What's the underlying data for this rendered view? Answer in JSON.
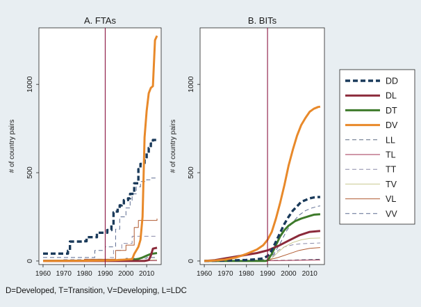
{
  "footnote": "D=Developed, T=Transition, V=Developing, L=LDC",
  "colors": {
    "background": "#e8eef2",
    "plot_bg": "#ffffff",
    "vline": "#8a1540",
    "DD": "#1a3a5a",
    "DL": "#8b2a3a",
    "DT": "#3d7a2a",
    "DV": "#e8892a",
    "LL": "#5a6a80",
    "TL": "#a03050",
    "TT": "#8a8aa8",
    "TV": "#c8c890",
    "VL": "#b05a30",
    "VV": "#5a6a90"
  },
  "legend": [
    {
      "key": "DD",
      "label": "DD"
    },
    {
      "key": "DL",
      "label": "DL"
    },
    {
      "key": "DT",
      "label": "DT"
    },
    {
      "key": "DV",
      "label": "DV"
    },
    {
      "key": "LL",
      "label": "LL"
    },
    {
      "key": "TL",
      "label": "TL"
    },
    {
      "key": "TT",
      "label": "TT"
    },
    {
      "key": "TV",
      "label": "TV"
    },
    {
      "key": "VL",
      "label": "VL"
    },
    {
      "key": "VV",
      "label": "VV"
    }
  ],
  "chart_data": [
    {
      "type": "line",
      "title": "A. FTAs",
      "xlabel": "",
      "ylabel": "# of country pairs",
      "xlim": [
        1958,
        2017
      ],
      "ylim": [
        -20,
        1320
      ],
      "xticks": [
        1960,
        1970,
        1980,
        1990,
        2000,
        2010
      ],
      "yticks": [
        0,
        500,
        1000
      ],
      "vline": 1990,
      "series": [
        {
          "name": "DD",
          "step": true,
          "points": [
            [
              1960,
              42
            ],
            [
              1962,
              42
            ],
            [
              1964,
              42
            ],
            [
              1966,
              42
            ],
            [
              1968,
              42
            ],
            [
              1970,
              42
            ],
            [
              1972,
              58
            ],
            [
              1973,
              110
            ],
            [
              1975,
              110
            ],
            [
              1977,
              110
            ],
            [
              1979,
              112
            ],
            [
              1981,
              135
            ],
            [
              1983,
              135
            ],
            [
              1985,
              135
            ],
            [
              1986,
              160
            ],
            [
              1988,
              160
            ],
            [
              1990,
              160
            ],
            [
              1991,
              175
            ],
            [
              1993,
              205
            ],
            [
              1994,
              275
            ],
            [
              1995,
              280
            ],
            [
              1996,
              300
            ],
            [
              1997,
              315
            ],
            [
              1998,
              320
            ],
            [
              1999,
              345
            ],
            [
              2001,
              355
            ],
            [
              2002,
              380
            ],
            [
              2004,
              440
            ],
            [
              2006,
              520
            ],
            [
              2007,
              550
            ],
            [
              2008,
              550
            ],
            [
              2009,
              575
            ],
            [
              2010,
              610
            ],
            [
              2011,
              640
            ],
            [
              2012,
              665
            ],
            [
              2013,
              685
            ],
            [
              2015,
              688
            ]
          ]
        },
        {
          "name": "DL",
          "step": false,
          "points": [
            [
              1960,
              0
            ],
            [
              2009,
              0
            ],
            [
              2011,
              5
            ],
            [
              2012,
              30
            ],
            [
              2013,
              70
            ],
            [
              2015,
              75
            ]
          ]
        },
        {
          "name": "DT",
          "step": false,
          "points": [
            [
              1960,
              0
            ],
            [
              1994,
              3
            ],
            [
              2000,
              6
            ],
            [
              2004,
              8
            ],
            [
              2006,
              12
            ],
            [
              2008,
              20
            ],
            [
              2010,
              30
            ],
            [
              2012,
              40
            ],
            [
              2015,
              45
            ]
          ]
        },
        {
          "name": "DV",
          "step": false,
          "points": [
            [
              1960,
              0
            ],
            [
              1985,
              2
            ],
            [
              1990,
              3
            ],
            [
              1995,
              5
            ],
            [
              2000,
              8
            ],
            [
              2003,
              10
            ],
            [
              2004,
              40
            ],
            [
              2005,
              60
            ],
            [
              2006,
              80
            ],
            [
              2007,
              120
            ],
            [
              2008,
              250
            ],
            [
              2009,
              700
            ],
            [
              2010,
              850
            ],
            [
              2011,
              950
            ],
            [
              2012,
              980
            ],
            [
              2013,
              990
            ],
            [
              2014,
              1250
            ],
            [
              2015,
              1275
            ]
          ]
        },
        {
          "name": "LL",
          "step": true,
          "points": [
            [
              1960,
              0
            ],
            [
              1970,
              5
            ],
            [
              1985,
              5
            ],
            [
              1993,
              10
            ],
            [
              2000,
              15
            ],
            [
              2010,
              20
            ],
            [
              2015,
              22
            ]
          ]
        },
        {
          "name": "TL",
          "step": false,
          "points": [
            [
              1960,
              0
            ],
            [
              2015,
              2
            ]
          ]
        },
        {
          "name": "TT",
          "step": true,
          "points": [
            [
              1960,
              5
            ],
            [
              1970,
              8
            ],
            [
              1980,
              10
            ],
            [
              1992,
              20
            ],
            [
              1994,
              60
            ],
            [
              1998,
              100
            ],
            [
              2003,
              140
            ],
            [
              2015,
              140
            ]
          ]
        },
        {
          "name": "TV",
          "step": false,
          "points": [
            [
              1960,
              0
            ],
            [
              1990,
              2
            ],
            [
              2000,
              3
            ],
            [
              2008,
              5
            ],
            [
              2015,
              8
            ]
          ]
        },
        {
          "name": "VL",
          "step": true,
          "points": [
            [
              1960,
              5
            ],
            [
              1970,
              5
            ],
            [
              1980,
              10
            ],
            [
              1990,
              10
            ],
            [
              1995,
              60
            ],
            [
              2000,
              90
            ],
            [
              2004,
              190
            ],
            [
              2006,
              230
            ],
            [
              2015,
              240
            ]
          ]
        },
        {
          "name": "VV",
          "step": true,
          "points": [
            [
              1960,
              20
            ],
            [
              1965,
              20
            ],
            [
              1975,
              20
            ],
            [
              1985,
              60
            ],
            [
              1990,
              80
            ],
            [
              1995,
              180
            ],
            [
              1997,
              250
            ],
            [
              2000,
              300
            ],
            [
              2002,
              340
            ],
            [
              2003,
              380
            ],
            [
              2005,
              420
            ],
            [
              2007,
              450
            ],
            [
              2010,
              460
            ],
            [
              2012,
              470
            ],
            [
              2015,
              475
            ]
          ]
        }
      ]
    },
    {
      "type": "line",
      "title": "B. BITs",
      "xlabel": "",
      "ylabel": "# of country pairs",
      "xlim": [
        1958,
        2017
      ],
      "ylim": [
        -20,
        1320
      ],
      "xticks": [
        1960,
        1970,
        1980,
        1990,
        2000,
        2010
      ],
      "yticks": [
        0,
        500,
        1000
      ],
      "vline": 1990,
      "series": [
        {
          "name": "DD",
          "step": false,
          "points": [
            [
              1960,
              0
            ],
            [
              1975,
              4
            ],
            [
              1980,
              6
            ],
            [
              1985,
              10
            ],
            [
              1988,
              15
            ],
            [
              1990,
              28
            ],
            [
              1992,
              60
            ],
            [
              1994,
              110
            ],
            [
              1996,
              160
            ],
            [
              1998,
              210
            ],
            [
              2000,
              250
            ],
            [
              2002,
              285
            ],
            [
              2004,
              310
            ],
            [
              2006,
              335
            ],
            [
              2008,
              345
            ],
            [
              2010,
              355
            ],
            [
              2012,
              360
            ],
            [
              2014,
              362
            ],
            [
              2015,
              362
            ]
          ]
        },
        {
          "name": "DL",
          "step": false,
          "points": [
            [
              1960,
              0
            ],
            [
              1965,
              5
            ],
            [
              1970,
              15
            ],
            [
              1975,
              25
            ],
            [
              1980,
              35
            ],
            [
              1985,
              45
            ],
            [
              1990,
              60
            ],
            [
              1995,
              85
            ],
            [
              2000,
              115
            ],
            [
              2005,
              145
            ],
            [
              2010,
              165
            ],
            [
              2015,
              170
            ]
          ]
        },
        {
          "name": "DT",
          "step": false,
          "points": [
            [
              1960,
              0
            ],
            [
              1989,
              0
            ],
            [
              1990,
              3
            ],
            [
              1992,
              40
            ],
            [
              1994,
              90
            ],
            [
              1996,
              140
            ],
            [
              1998,
              175
            ],
            [
              2000,
              200
            ],
            [
              2003,
              225
            ],
            [
              2006,
              240
            ],
            [
              2010,
              255
            ],
            [
              2012,
              262
            ],
            [
              2015,
              265
            ]
          ]
        },
        {
          "name": "DV",
          "step": false,
          "points": [
            [
              1960,
              0
            ],
            [
              1965,
              3
            ],
            [
              1970,
              8
            ],
            [
              1975,
              20
            ],
            [
              1980,
              40
            ],
            [
              1985,
              65
            ],
            [
              1988,
              90
            ],
            [
              1990,
              120
            ],
            [
              1992,
              165
            ],
            [
              1994,
              240
            ],
            [
              1996,
              330
            ],
            [
              1998,
              430
            ],
            [
              2000,
              540
            ],
            [
              2002,
              630
            ],
            [
              2004,
              710
            ],
            [
              2006,
              770
            ],
            [
              2008,
              810
            ],
            [
              2010,
              845
            ],
            [
              2012,
              862
            ],
            [
              2014,
              872
            ],
            [
              2015,
              874
            ]
          ]
        },
        {
          "name": "LL",
          "step": false,
          "points": [
            [
              1960,
              0
            ],
            [
              1990,
              2
            ],
            [
              2000,
              5
            ],
            [
              2015,
              10
            ]
          ]
        },
        {
          "name": "TL",
          "step": false,
          "points": [
            [
              1960,
              0
            ],
            [
              1995,
              2
            ],
            [
              2015,
              6
            ]
          ]
        },
        {
          "name": "TT",
          "step": false,
          "points": [
            [
              1960,
              0
            ],
            [
              1990,
              2
            ],
            [
              1992,
              20
            ],
            [
              1995,
              60
            ],
            [
              1998,
              80
            ],
            [
              2002,
              92
            ],
            [
              2006,
              98
            ],
            [
              2015,
              102
            ]
          ]
        },
        {
          "name": "TV",
          "step": false,
          "points": [
            [
              1960,
              0
            ],
            [
              1990,
              2
            ],
            [
              1992,
              15
            ],
            [
              1995,
              50
            ],
            [
              1998,
              80
            ],
            [
              2002,
              105
            ],
            [
              2006,
              120
            ],
            [
              2010,
              128
            ],
            [
              2015,
              130
            ]
          ]
        },
        {
          "name": "VL",
          "step": false,
          "points": [
            [
              1960,
              0
            ],
            [
              1985,
              2
            ],
            [
              1990,
              4
            ],
            [
              1995,
              20
            ],
            [
              2000,
              40
            ],
            [
              2005,
              60
            ],
            [
              2010,
              72
            ],
            [
              2015,
              76
            ]
          ]
        },
        {
          "name": "VV",
          "step": false,
          "points": [
            [
              1960,
              0
            ],
            [
              1985,
              5
            ],
            [
              1990,
              10
            ],
            [
              1993,
              40
            ],
            [
              1996,
              100
            ],
            [
              1999,
              170
            ],
            [
              2002,
              220
            ],
            [
              2005,
              260
            ],
            [
              2008,
              285
            ],
            [
              2011,
              300
            ],
            [
              2014,
              310
            ],
            [
              2015,
              312
            ]
          ]
        }
      ]
    }
  ]
}
